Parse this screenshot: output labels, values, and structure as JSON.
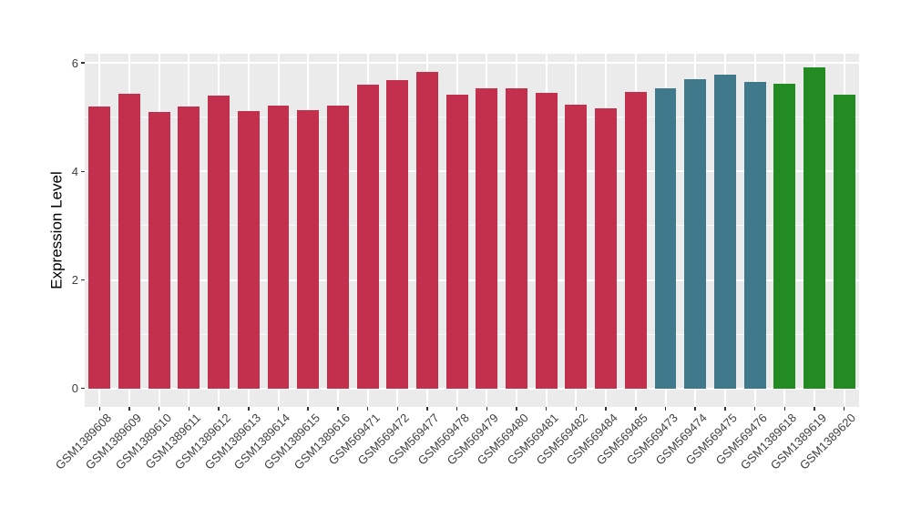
{
  "chart_data": {
    "type": "bar",
    "title": "",
    "xlabel": "",
    "ylabel": "Expression Level",
    "categories": [
      "GSM1389608",
      "GSM1389609",
      "GSM1389610",
      "GSM1389611",
      "GSM1389612",
      "GSM1389613",
      "GSM1389614",
      "GSM1389615",
      "GSM1389616",
      "GSM569471",
      "GSM569472",
      "GSM569477",
      "GSM569478",
      "GSM569479",
      "GSM569480",
      "GSM569481",
      "GSM569482",
      "GSM569484",
      "GSM569485",
      "GSM569473",
      "GSM569474",
      "GSM569475",
      "GSM569476",
      "GSM1389618",
      "GSM1389619",
      "GSM1389620"
    ],
    "values": [
      5.2,
      5.44,
      5.1,
      5.2,
      5.39,
      5.12,
      5.22,
      5.13,
      5.22,
      5.6,
      5.68,
      5.84,
      5.41,
      5.53,
      5.53,
      5.45,
      5.23,
      5.16,
      5.47,
      5.53,
      5.7,
      5.79,
      5.65,
      5.62,
      5.92,
      5.42
    ],
    "bar_group": [
      0,
      0,
      0,
      0,
      0,
      0,
      0,
      0,
      0,
      0,
      0,
      0,
      0,
      0,
      0,
      0,
      0,
      0,
      0,
      1,
      1,
      1,
      1,
      2,
      2,
      2
    ],
    "group_colors": [
      "#C3304D",
      "#41798C",
      "#228B22"
    ],
    "yticks": [
      0,
      2,
      4,
      6
    ],
    "yticks_minor": [
      1,
      3,
      5
    ],
    "ylim": [
      -0.34,
      6.17
    ],
    "grid": true,
    "legend": false,
    "bar_width_ratio": 0.73,
    "panel_background": "#EBEBEB",
    "grid_major_color": "#FFFFFF",
    "grid_minor_color": "rgba(255,255,255,0.65)",
    "tick_mark_color": "#333333",
    "tick_label_color": "#404040",
    "axis_title_color": "#000000"
  }
}
